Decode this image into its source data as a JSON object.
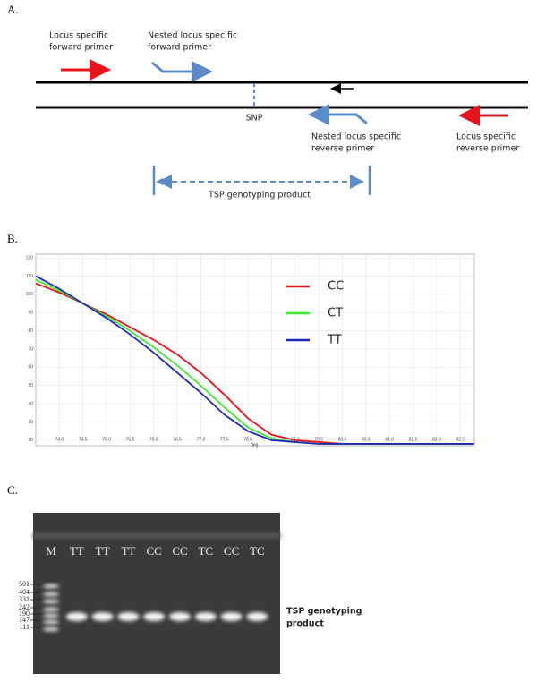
{
  "panel_a": {
    "label": "A.",
    "forward_primer": [
      "Locus specific",
      "forward primer"
    ],
    "nested_forward_primer": [
      "Nested locus specific",
      "forward primer"
    ],
    "snp": "SNP",
    "nested_reverse_primer": [
      "Nested locus specific",
      "reverse primer"
    ],
    "reverse_primer": [
      "Locus specific",
      "reverse primer"
    ],
    "product": "TSP genotyping product"
  },
  "panel_b": {
    "label": "B."
  },
  "chart_data": {
    "type": "line",
    "x_label": "deg.",
    "x": [
      73.5,
      74,
      74.5,
      75,
      75.5,
      76,
      76.5,
      77,
      77.5,
      78,
      78.5,
      79,
      79.5,
      80,
      80.5,
      81,
      81.5,
      82,
      82.5,
      82.8
    ],
    "series": [
      {
        "name": "CC",
        "color": "#e8141b",
        "values": [
          106,
          101,
          95,
          89,
          82,
          75,
          67,
          57,
          45,
          32,
          23,
          20,
          19,
          18,
          18,
          18,
          18,
          18,
          18,
          18
        ]
      },
      {
        "name": "CT",
        "color": "#3ee830",
        "values": [
          108,
          102,
          95,
          88,
          80,
          71,
          61,
          50,
          38,
          27,
          21,
          19,
          18,
          18,
          18,
          18,
          18,
          18,
          18,
          18
        ]
      },
      {
        "name": "TT",
        "color": "#1b2bb8",
        "values": [
          110,
          103,
          95,
          87,
          78,
          68,
          57,
          46,
          34,
          25,
          20,
          19,
          18,
          18,
          18,
          18,
          18,
          18,
          18,
          18
        ]
      }
    ],
    "xlim": [
      73.5,
      82.8
    ],
    "ylim": [
      17,
      122
    ],
    "xticks": [
      {
        "value": 74,
        "label": "74.0"
      },
      74.5,
      {
        "value": 75,
        "label": "75.0"
      },
      75.5,
      {
        "value": 76,
        "label": "76.0"
      },
      76.5,
      {
        "value": 77,
        "label": "77.0"
      },
      77.5,
      {
        "value": 78,
        "label": "78.0"
      },
      78.5,
      {
        "value": 79,
        "label": "79.0"
      },
      79.5,
      {
        "value": 80,
        "label": "80.0"
      },
      80.5,
      {
        "value": 81,
        "label": "81.0"
      },
      81.5,
      {
        "value": 82,
        "label": "82.0"
      },
      82.5
    ],
    "yticks": [
      20,
      30,
      40,
      50,
      60,
      70,
      80,
      90,
      100,
      110,
      120
    ],
    "grid": true
  },
  "panel_c": {
    "label": "C.",
    "lanes": [
      "M",
      "TT",
      "TT",
      "TT",
      "CC",
      "CC",
      "TC",
      "CC",
      "TC"
    ],
    "marker_sizes": [
      501,
      404,
      331,
      242,
      190,
      147,
      111
    ],
    "band_label": [
      "TSP genotyping",
      "product"
    ]
  }
}
